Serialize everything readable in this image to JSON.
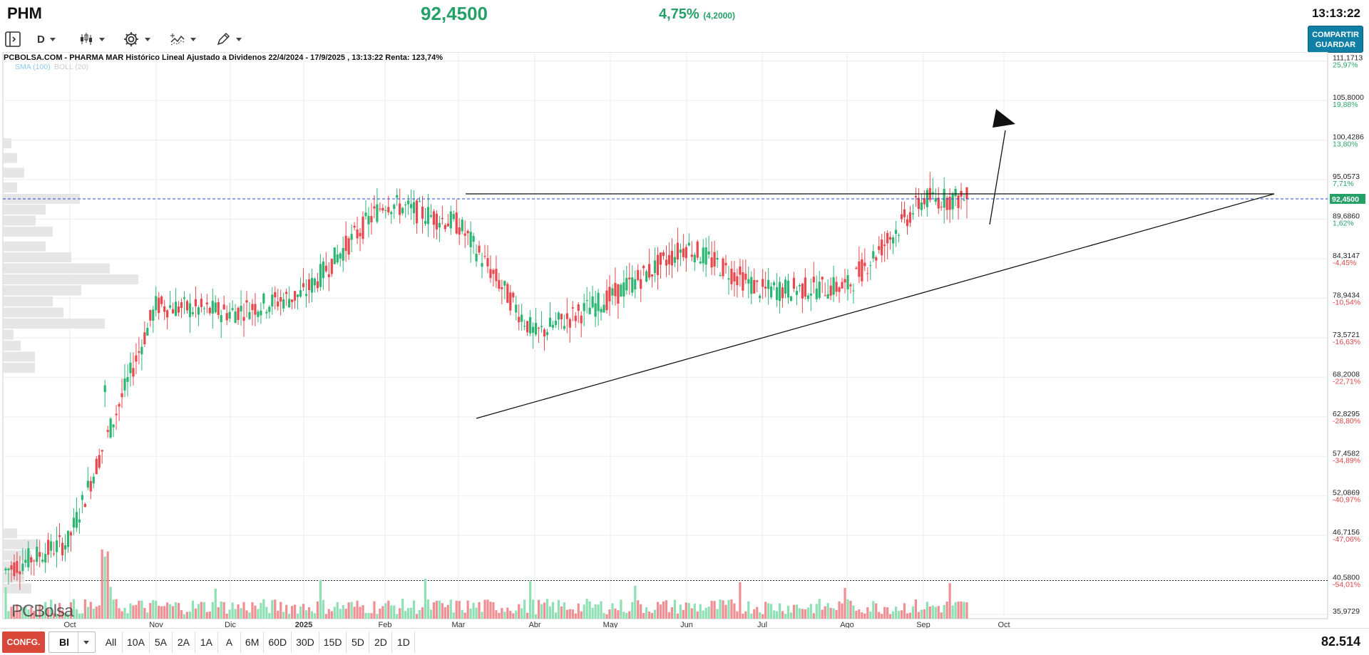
{
  "header": {
    "ticker": "PHM",
    "price": "92,4500",
    "change_pct": "4,75%",
    "change_abs": "(4,2000)",
    "time": "13:13:22",
    "share_label_1": "COMPARTIR",
    "share_label_2": "GUARDAR"
  },
  "toolbar": {
    "period": "D"
  },
  "chart": {
    "info": "PCBOLSA.COM - PHARMA MAR Histórico Lineal Ajustado a Dividenos 22/4/2024 - 17/9/2025 , 13:13:22 Renta: 123,74%",
    "indicator_sma": "SMA (100)",
    "indicator_boll": "BOLL (20)",
    "watermark": "PCBolsa",
    "current_price_label": "92,4500"
  },
  "chart_data": {
    "type": "candlestick",
    "y_levels": [
      {
        "price": "111,1713",
        "pct": "25,97%",
        "v": 111.1713
      },
      {
        "price": "105,8000",
        "pct": "19,88%",
        "v": 105.8
      },
      {
        "price": "100,4286",
        "pct": "13,80%",
        "v": 100.4286
      },
      {
        "price": "95,0573",
        "pct": "7,71%",
        "v": 95.0573
      },
      {
        "price": "89,6860",
        "pct": "1,62%",
        "v": 89.686
      },
      {
        "price": "84,3147",
        "pct": "-4,45%",
        "v": 84.3147
      },
      {
        "price": "78,9434",
        "pct": "-10,54%",
        "v": 78.9434
      },
      {
        "price": "73,5721",
        "pct": "-16,63%",
        "v": 73.5721
      },
      {
        "price": "68,2008",
        "pct": "-22,71%",
        "v": 68.2008
      },
      {
        "price": "62,8295",
        "pct": "-28,80%",
        "v": 62.8295
      },
      {
        "price": "57,4582",
        "pct": "-34,89%",
        "v": 57.4582
      },
      {
        "price": "52,0869",
        "pct": "-40,97%",
        "v": 52.0869
      },
      {
        "price": "46,7156",
        "pct": "-47,06%",
        "v": 46.7156
      },
      {
        "price": "40,5800",
        "pct": "-54,01%",
        "v": 40.58
      },
      {
        "price": "35,9729",
        "pct": "",
        "v": 35.9729
      }
    ],
    "x_labels": [
      "Oct",
      "Nov",
      "Dic",
      "2025",
      "Feb",
      "Mar",
      "Abr",
      "May",
      "Jun",
      "Jul",
      "Ago",
      "Sep",
      "Oct"
    ],
    "monthly_closes": [
      {
        "m": "Oct",
        "v": 46.5
      },
      {
        "m": "Nov",
        "v": 78.0
      },
      {
        "m": "Dic",
        "v": 77.0
      },
      {
        "m": "2025",
        "v": 79.5
      },
      {
        "m": "Feb",
        "v": 92.0
      },
      {
        "m": "Mar",
        "v": 89.0
      },
      {
        "m": "Abr",
        "v": 74.0
      },
      {
        "m": "May",
        "v": 79.0
      },
      {
        "m": "Jun",
        "v": 86.0
      },
      {
        "m": "Jul",
        "v": 80.0
      },
      {
        "m": "Ago",
        "v": 80.5
      },
      {
        "m": "Sep",
        "v": 92.45
      }
    ],
    "resistance": 92.45,
    "colors": {
      "up": "#2bb673",
      "down": "#e8474d",
      "up_volume": "#8fe0b4",
      "down_volume": "#f08f93"
    }
  },
  "bottom": {
    "config_label": "CONFG.",
    "chart_type": "Bl",
    "ranges": [
      "All",
      "10A",
      "5A",
      "2A",
      "1A",
      "A",
      "6M",
      "60D",
      "30D",
      "15D",
      "5D",
      "2D",
      "1D"
    ],
    "volume": "82.514"
  },
  "icons": [
    "panel-icon",
    "candles-icon",
    "gear-icon",
    "indicator-icon",
    "pencil-icon"
  ]
}
